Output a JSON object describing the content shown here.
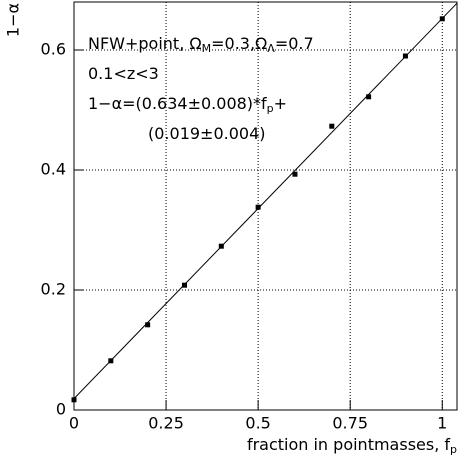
{
  "chart_data": {
    "type": "scatter",
    "x_label": [
      "fraction in pointmasses, f",
      "p"
    ],
    "y_label": "1−α",
    "annotations": [
      [
        "NFW+point, Ω",
        "M",
        "=0.3,Ω",
        "Λ",
        "=0.7"
      ],
      [
        "0.1<z<3"
      ],
      [
        "1−α=(0.634±0.008)*f",
        "p",
        "+"
      ],
      [
        "(0.019±0.004)"
      ]
    ],
    "x": [
      0,
      0.1,
      0.2,
      0.3,
      0.4,
      0.5,
      0.6,
      0.7,
      0.8,
      0.9,
      1
    ],
    "series": [
      {
        "color": "#000000",
        "values": [
          0.017,
          0.082,
          0.142,
          0.208,
          0.273,
          0.338,
          0.393,
          0.473,
          0.522,
          0.59,
          0.652
        ]
      }
    ],
    "fit": {
      "color": "#000000",
      "x": [
        0,
        1.04
      ],
      "values": [
        0.019,
        0.678
      ]
    },
    "xlim": [
      0,
      1.04
    ],
    "ylim": [
      0,
      0.68
    ],
    "xticks": [
      0,
      0.25,
      0.5,
      0.75,
      1
    ],
    "yticks": [
      0,
      0.2,
      0.4,
      0.6
    ],
    "grid": true
  }
}
